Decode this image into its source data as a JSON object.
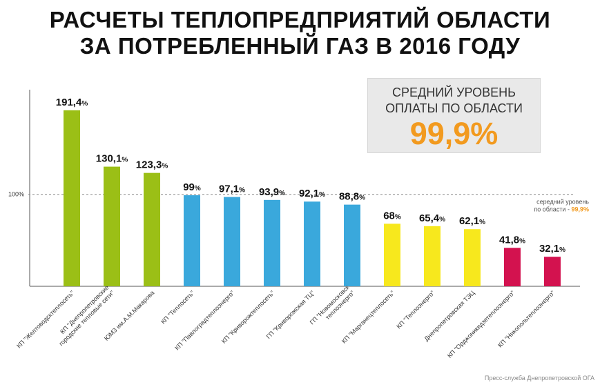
{
  "title_line1": "РАСЧЕТЫ ТЕПЛОПРЕДПРИЯТИЙ ОБЛАСТИ",
  "title_line2": "ЗА ПОТРЕБЛЕННЫЙ ГАЗ В 2016 ГОДУ",
  "avg_box": {
    "line1": "СРЕДНИЙ УРОВЕНЬ",
    "line2": "ОПЛАТЫ ПО ОБЛАСТИ",
    "value": "99,9%"
  },
  "source": "Пресс-служба Днепропетровской ОГА",
  "colors": {
    "green": "#9bbf16",
    "blue": "#3aa8dc",
    "yellow": "#f7e81d",
    "red": "#d3124f",
    "accent": "#f29a1f"
  },
  "chart_data": {
    "type": "bar",
    "ylim": [
      0,
      200
    ],
    "reference_line": {
      "value": 100,
      "label": "100%",
      "note_line1": "середний уровень",
      "note_line2_prefix": "по области - ",
      "note_value": "99,9%"
    },
    "categories": [
      [
        "КП \"Желтоводсктеплосеть\""
      ],
      [
        "КП \"Днепропетровские",
        "городские тепловые сети\""
      ],
      [
        "ЮМЗ им.А.М.Макарова"
      ],
      [
        "КП \"Теплосеть\""
      ],
      [
        "КП \"Павлоградтеплоэнерго\""
      ],
      [
        "КП \"Криворожтеплосеть\""
      ],
      [
        "ГП \"Криворожская ТЦ\""
      ],
      [
        "ГП \"Новомосковск",
        "теплоэнерго\""
      ],
      [
        "КП \"Марганецтеплосеть\""
      ],
      [
        "КП \"Теплоэнерго\""
      ],
      [
        "Днепропетровская ТЭЦ"
      ],
      [
        "КП \"Орджоникидзетеплоэнерго\""
      ],
      [
        "КП \"Никопольтеплоэнерго\""
      ]
    ],
    "values": [
      191.4,
      130.1,
      123.3,
      99,
      97.1,
      93.9,
      92.1,
      88.8,
      68,
      65.4,
      62.1,
      41.8,
      32.1
    ],
    "value_labels": [
      "191,4",
      "130,1",
      "123,3",
      "99",
      "97,1",
      "93,9",
      "92,1",
      "88,8",
      "68",
      "65,4",
      "62,1",
      "41,8",
      "32,1"
    ],
    "value_unit": "%",
    "bar_colors": [
      "green",
      "green",
      "green",
      "blue",
      "blue",
      "blue",
      "blue",
      "blue",
      "yellow",
      "yellow",
      "yellow",
      "red",
      "red"
    ]
  }
}
